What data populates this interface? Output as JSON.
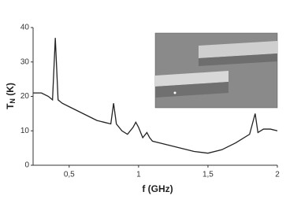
{
  "chart_data": {
    "type": "line",
    "xlabel": "f (GHz)",
    "ylabel": {
      "main": "T",
      "sub": "N",
      "unit": "(K)"
    },
    "x": [
      0.24,
      0.3,
      0.35,
      0.38,
      0.4,
      0.42,
      0.45,
      0.5,
      0.55,
      0.6,
      0.65,
      0.7,
      0.75,
      0.8,
      0.82,
      0.84,
      0.88,
      0.92,
      0.96,
      0.98,
      1.0,
      1.03,
      1.06,
      1.08,
      1.1,
      1.2,
      1.3,
      1.4,
      1.5,
      1.6,
      1.7,
      1.8,
      1.84,
      1.86,
      1.9,
      1.95,
      2.0
    ],
    "series": [
      {
        "color": "#222222",
        "values": [
          21,
          21,
          20,
          19,
          37,
          19,
          18,
          17,
          16,
          15,
          14,
          13,
          12.5,
          12,
          18,
          12,
          10,
          9,
          11,
          12.5,
          11,
          8,
          9.5,
          8,
          7,
          6,
          5,
          4,
          3.5,
          4.5,
          6.5,
          9,
          15,
          9.5,
          10.5,
          10.5,
          10
        ]
      }
    ],
    "xlim": [
      0.24,
      2
    ],
    "ylim": [
      0,
      40
    ],
    "xticks": [
      {
        "value": 0.5,
        "label": "0,5"
      },
      1,
      {
        "value": 1.5,
        "label": "1,5"
      },
      2
    ],
    "yticks": [
      0,
      10,
      20,
      30,
      40
    ]
  }
}
